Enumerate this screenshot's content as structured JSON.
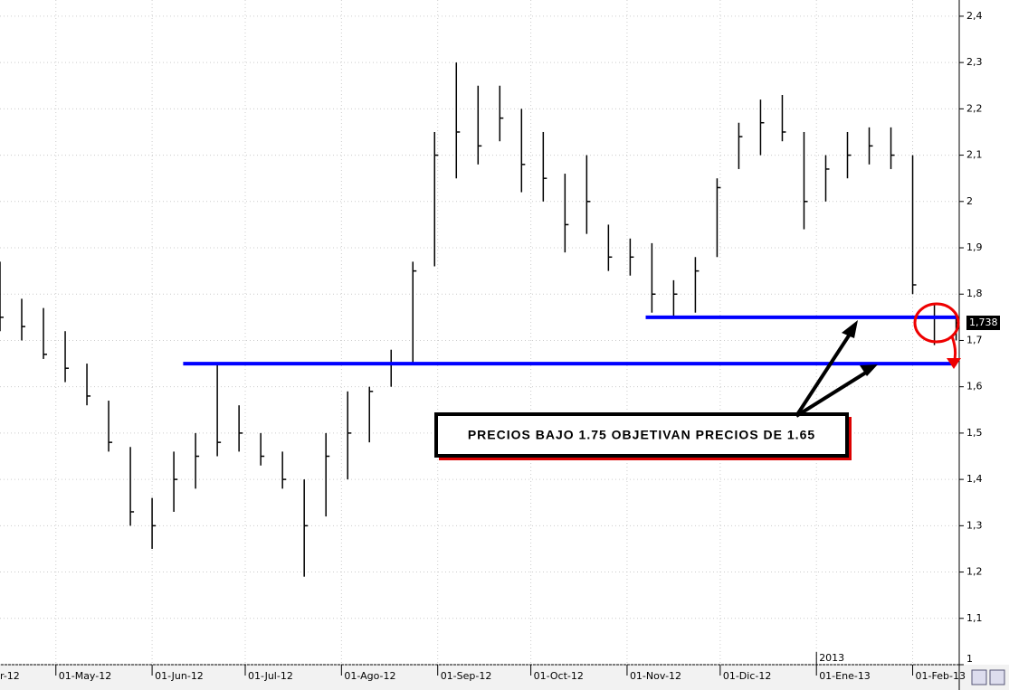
{
  "chart_data": {
    "type": "ohlc",
    "x": [
      "2012-04-13",
      "2012-04-20",
      "2012-04-27",
      "2012-05-04",
      "2012-05-11",
      "2012-05-18",
      "2012-05-25",
      "2012-06-01",
      "2012-06-08",
      "2012-06-15",
      "2012-06-22",
      "2012-06-29",
      "2012-07-06",
      "2012-07-13",
      "2012-07-20",
      "2012-07-27",
      "2012-08-03",
      "2012-08-10",
      "2012-08-17",
      "2012-08-24",
      "2012-08-31",
      "2012-09-07",
      "2012-09-14",
      "2012-09-21",
      "2012-09-28",
      "2012-10-05",
      "2012-10-12",
      "2012-10-19",
      "2012-10-26",
      "2012-11-02",
      "2012-11-09",
      "2012-11-16",
      "2012-11-23",
      "2012-11-30",
      "2012-12-07",
      "2012-12-14",
      "2012-12-21",
      "2012-12-28",
      "2013-01-04",
      "2013-01-11",
      "2013-01-18",
      "2013-01-25",
      "2013-02-01",
      "2013-02-08",
      "2013-02-15"
    ],
    "high": [
      1.87,
      1.79,
      1.77,
      1.72,
      1.65,
      1.57,
      1.47,
      1.36,
      1.46,
      1.5,
      1.65,
      1.56,
      1.5,
      1.46,
      1.4,
      1.5,
      1.59,
      1.6,
      1.68,
      1.87,
      2.15,
      2.3,
      2.25,
      2.25,
      2.2,
      2.15,
      2.06,
      2.1,
      1.95,
      1.92,
      1.91,
      1.83,
      1.88,
      2.05,
      2.17,
      2.22,
      2.23,
      2.15,
      2.1,
      2.15,
      2.16,
      2.16,
      2.1,
      1.78,
      1.76
    ],
    "low": [
      1.72,
      1.7,
      1.66,
      1.61,
      1.56,
      1.46,
      1.3,
      1.25,
      1.33,
      1.38,
      1.45,
      1.46,
      1.43,
      1.38,
      1.19,
      1.32,
      1.4,
      1.48,
      1.6,
      1.65,
      1.86,
      2.05,
      2.08,
      2.13,
      2.02,
      2.0,
      1.89,
      1.93,
      1.85,
      1.84,
      1.76,
      1.75,
      1.76,
      1.88,
      2.07,
      2.1,
      2.13,
      1.94,
      2.0,
      2.05,
      2.08,
      2.07,
      1.8,
      1.69,
      1.7
    ],
    "close": [
      1.75,
      1.73,
      1.67,
      1.64,
      1.58,
      1.48,
      1.33,
      1.3,
      1.4,
      1.45,
      1.48,
      1.5,
      1.45,
      1.4,
      1.3,
      1.45,
      1.5,
      1.59,
      1.65,
      1.85,
      2.1,
      2.15,
      2.12,
      2.18,
      2.08,
      2.05,
      1.95,
      2.0,
      1.88,
      1.88,
      1.8,
      1.8,
      1.85,
      2.03,
      2.14,
      2.17,
      2.15,
      2.0,
      2.07,
      2.1,
      2.12,
      2.1,
      1.82,
      1.75,
      1.738
    ],
    "color": "#000000",
    "xlim": [
      "2012-04-13",
      "2013-02-16"
    ],
    "xticks": [
      {
        "value": "2012-04-01",
        "label": "r-12"
      },
      {
        "value": "2012-05-01",
        "label": "01-May-12"
      },
      {
        "value": "2012-06-01",
        "label": "01-Jun-12"
      },
      {
        "value": "2012-07-01",
        "label": "01-Jul-12"
      },
      {
        "value": "2012-08-01",
        "label": "01-Ago-12"
      },
      {
        "value": "2012-09-01",
        "label": "01-Sep-12"
      },
      {
        "value": "2012-10-01",
        "label": "01-Oct-12"
      },
      {
        "value": "2012-11-01",
        "label": "01-Nov-12"
      },
      {
        "value": "2012-12-01",
        "label": "01-Dic-12"
      },
      {
        "value": "2013-01-01",
        "label": "01-Ene-13"
      },
      {
        "value": "2013-02-01",
        "label": "01-Feb-13"
      }
    ],
    "year_marker": {
      "value": "2013-01-01",
      "label": "2013"
    },
    "ylim": [
      1,
      2.435
    ],
    "yticks": [
      1,
      {
        "value": 1.1,
        "label": "1,1"
      },
      {
        "value": 1.2,
        "label": "1,2"
      },
      {
        "value": 1.3,
        "label": "1,3"
      },
      {
        "value": 1.4,
        "label": "1,4"
      },
      {
        "value": 1.5,
        "label": "1,5"
      },
      {
        "value": 1.6,
        "label": "1,6"
      },
      {
        "value": 1.7,
        "label": "1,7"
      },
      {
        "value": 1.8,
        "label": "1,8"
      },
      {
        "value": 1.9,
        "label": "1,9"
      },
      2,
      {
        "value": 2.1,
        "label": "2,1"
      },
      {
        "value": 2.2,
        "label": "2,2"
      },
      {
        "value": 2.3,
        "label": "2,3"
      },
      {
        "value": 2.4,
        "label": "2,4"
      }
    ],
    "grid": true,
    "last_price": {
      "value": 1.738,
      "label": "1,738"
    },
    "hlines": [
      {
        "value": 1.75,
        "start": "2012-11-07",
        "color": "#0000ff"
      },
      {
        "value": 1.65,
        "start": "2012-06-11",
        "color": "#0000ff"
      }
    ],
    "annotation": "PRECIOS BAJO 1.75 OBJETIVAN PRECIOS DE 1.65"
  }
}
